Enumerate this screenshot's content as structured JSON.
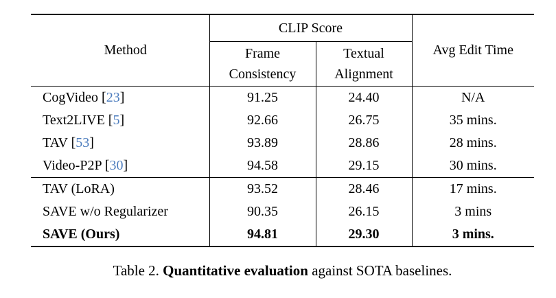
{
  "colors": {
    "citation": "#4d7dbe",
    "text": "#000000",
    "background": "#ffffff"
  },
  "table": {
    "headers": {
      "method": "Method",
      "clip_score": "CLIP Score",
      "frame_consistency": "Frame Consistency",
      "textual_alignment": "Textual Alignment",
      "avg_edit_time": "Avg Edit Time"
    },
    "groups": [
      {
        "rows": [
          {
            "method": "CogVideo",
            "cite": "23",
            "frame": "91.25",
            "textual": "24.40",
            "time": "N/A"
          },
          {
            "method": "Text2LIVE",
            "cite": "5",
            "frame": "92.66",
            "textual": "26.75",
            "time": "35 mins."
          },
          {
            "method": "TAV",
            "cite": "53",
            "frame": "93.89",
            "textual": "28.86",
            "time": "28 mins."
          },
          {
            "method": "Video-P2P",
            "cite": "30",
            "frame": "94.58",
            "textual": "29.15",
            "time": "30 mins."
          }
        ]
      },
      {
        "rows": [
          {
            "method": "TAV (LoRA)",
            "cite": "",
            "frame": "93.52",
            "textual": "28.46",
            "time": "17 mins."
          },
          {
            "method": "SAVE w/o Regularizer",
            "cite": "",
            "frame": "90.35",
            "textual": "26.15",
            "time": "3 mins"
          },
          {
            "method": "SAVE (Ours)",
            "cite": "",
            "frame": "94.81",
            "textual": "29.30",
            "time": "3 mins."
          }
        ]
      }
    ]
  },
  "caption": {
    "label": "Table 2.",
    "bold_part": "Quantitative evaluation",
    "rest": " against SOTA baselines."
  }
}
